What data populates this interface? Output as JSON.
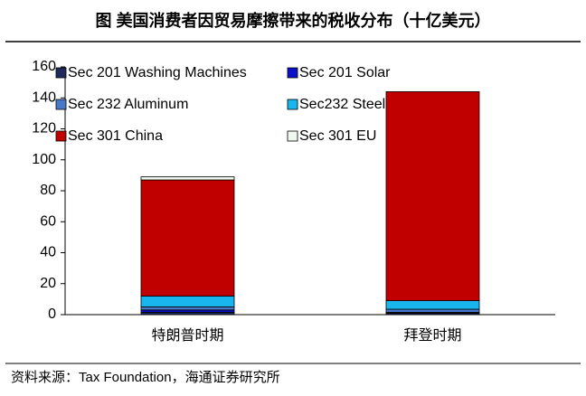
{
  "chart_data": {
    "type": "stacked_bar",
    "title": "图 美国消费者因贸易摩擦带来的税收分布（十亿美元）",
    "source": "资料来源：Tax Foundation，海通证券研究所",
    "categories": [
      "特朗普时期",
      "拜登时期"
    ],
    "series": [
      {
        "name": "Sec 201 Washing Machines",
        "color": "#1f2a5c",
        "values": [
          1.5,
          1
        ]
      },
      {
        "name": "Sec 201 Solar",
        "color": "#0a10c8",
        "values": [
          1.5,
          0.5
        ]
      },
      {
        "name": "Sec 232 Aluminum",
        "color": "#4a78c8",
        "values": [
          2,
          2
        ]
      },
      {
        "name": "Sec232 Steel",
        "color": "#19b6ee",
        "values": [
          7,
          5.5
        ]
      },
      {
        "name": "Sec 301 China",
        "color": "#c00000",
        "values": [
          75,
          135
        ]
      },
      {
        "name": "Sec 301 EU",
        "color": "#eef8ee",
        "values": [
          2,
          0
        ]
      }
    ],
    "ylim": [
      0,
      160
    ],
    "yticks": [
      0,
      20,
      40,
      60,
      80,
      100,
      120,
      140,
      160
    ]
  }
}
